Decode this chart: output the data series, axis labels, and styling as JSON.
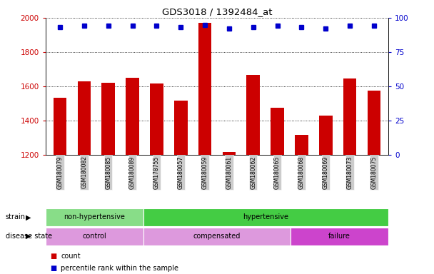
{
  "title": "GDS3018 / 1392484_at",
  "samples": [
    "GSM180079",
    "GSM180082",
    "GSM180085",
    "GSM180089",
    "GSM178755",
    "GSM180057",
    "GSM180059",
    "GSM180061",
    "GSM180062",
    "GSM180065",
    "GSM180068",
    "GSM180069",
    "GSM180073",
    "GSM180075"
  ],
  "counts": [
    1535,
    1630,
    1620,
    1650,
    1615,
    1515,
    1970,
    1215,
    1665,
    1475,
    1315,
    1430,
    1645,
    1575
  ],
  "percentile_ranks": [
    93,
    94,
    94,
    94,
    94,
    93,
    95,
    92,
    93,
    94,
    93,
    92,
    94,
    94
  ],
  "ylim_left": [
    1200,
    2000
  ],
  "ylim_right": [
    0,
    100
  ],
  "yticks_left": [
    1200,
    1400,
    1600,
    1800,
    2000
  ],
  "yticks_right": [
    0,
    25,
    50,
    75,
    100
  ],
  "bar_color": "#cc0000",
  "dot_color": "#0000cc",
  "strain_groups": [
    {
      "label": "non-hypertensive",
      "start": 0,
      "end": 4,
      "color": "#88dd88"
    },
    {
      "label": "hypertensive",
      "start": 4,
      "end": 14,
      "color": "#44cc44"
    }
  ],
  "disease_groups": [
    {
      "label": "control",
      "start": 0,
      "end": 4,
      "color": "#dd99dd"
    },
    {
      "label": "compensated",
      "start": 4,
      "end": 10,
      "color": "#dd99dd"
    },
    {
      "label": "failure",
      "start": 10,
      "end": 14,
      "color": "#cc44cc"
    }
  ],
  "tick_bg_color": "#cccccc",
  "legend_count_color": "#cc0000",
  "legend_pct_color": "#0000cc",
  "bg_color": "#ffffff"
}
